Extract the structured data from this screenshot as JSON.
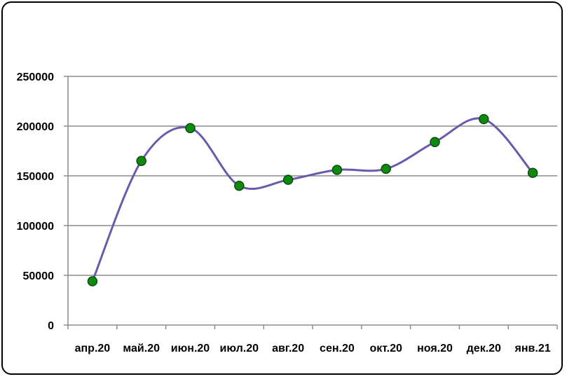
{
  "chart_data": {
    "type": "line",
    "title": "",
    "xlabel": "",
    "ylabel": "",
    "categories": [
      "апр.20",
      "май.20",
      "июн.20",
      "июл.20",
      "авг.20",
      "сен.20",
      "окт.20",
      "ноя.20",
      "дек.20",
      "янв.21"
    ],
    "series": [
      {
        "values": [
          44000,
          165000,
          198000,
          140000,
          146000,
          156000,
          157000,
          184000,
          207000,
          153000
        ]
      }
    ],
    "ylim": [
      0,
      250000
    ],
    "yticks": [
      "0",
      "50000",
      "100000",
      "150000",
      "200000",
      "250000"
    ],
    "grid": true,
    "smooth": true,
    "colors": {
      "line": "#6A5AAE",
      "marker": "#0E8A0E",
      "marker_edge": "#0B4F0B",
      "grid": "#8C8C8C"
    }
  }
}
